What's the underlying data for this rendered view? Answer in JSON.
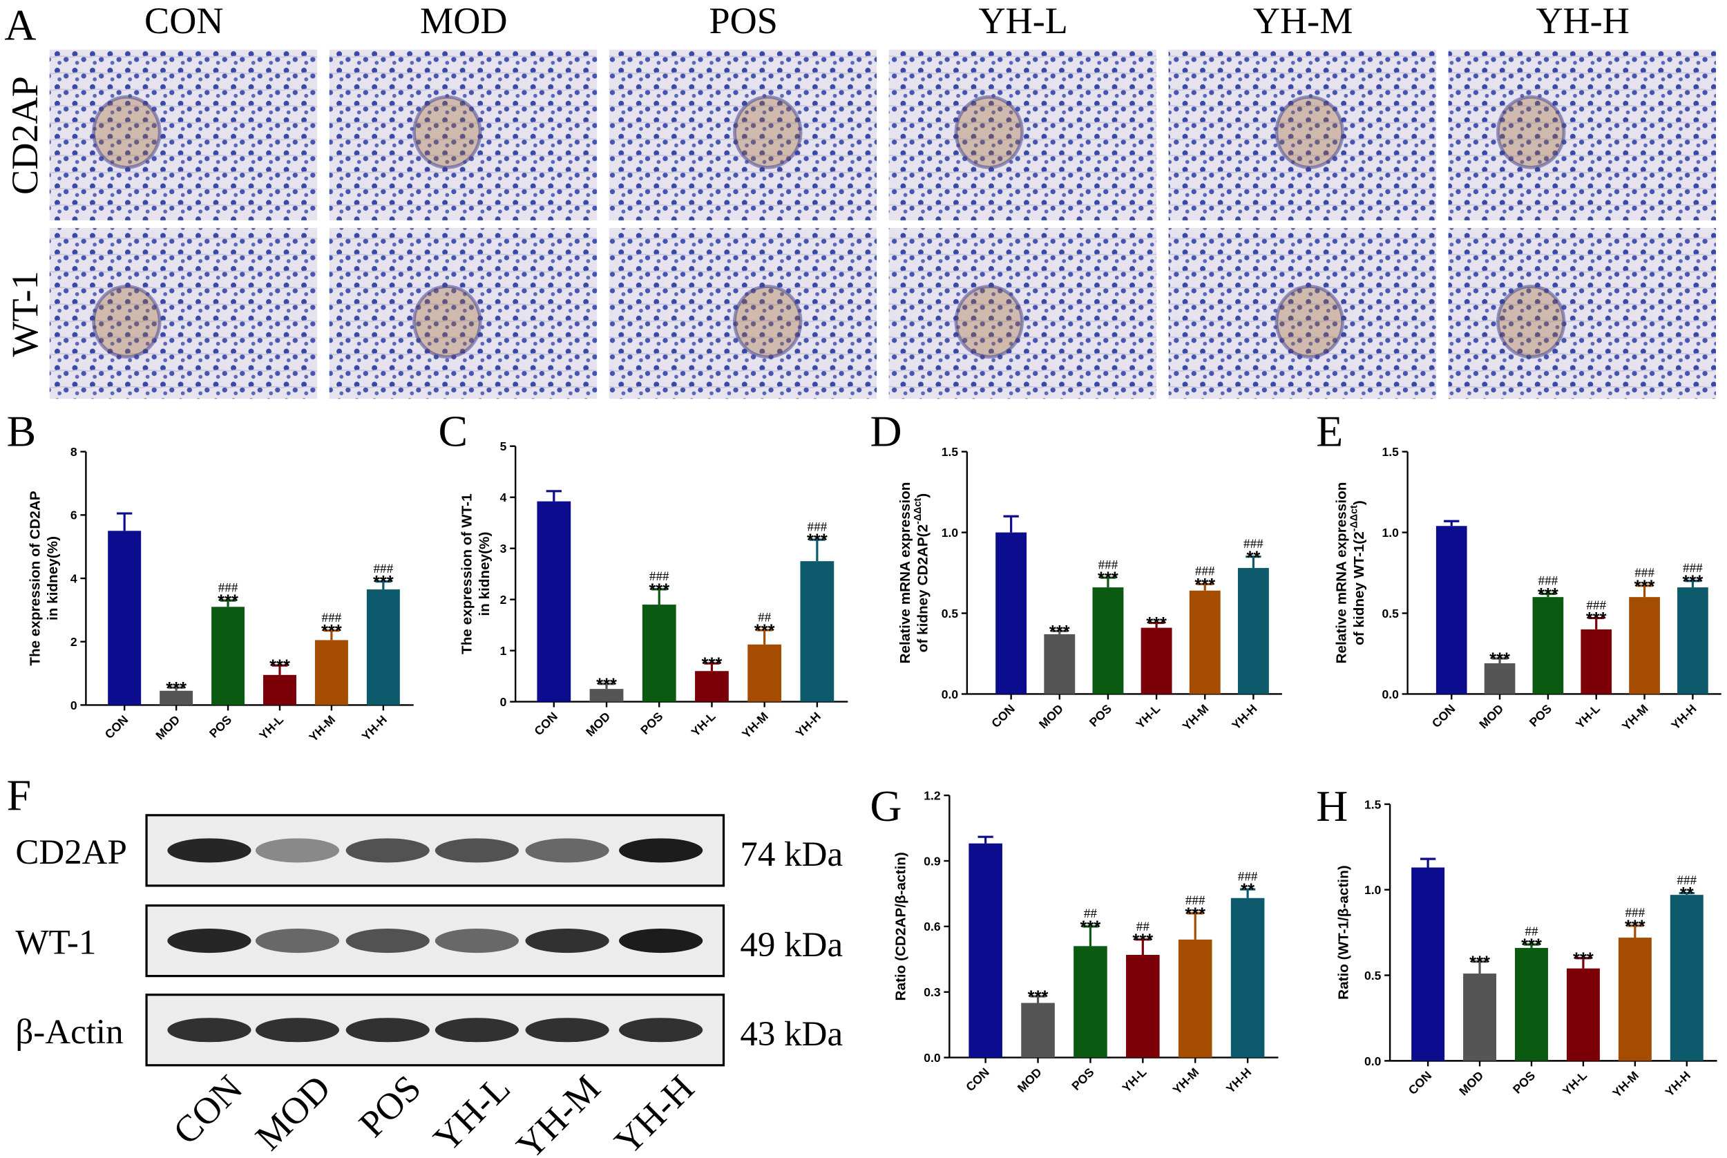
{
  "panel_a": {
    "letter": "A",
    "columns": [
      "CON",
      "MOD",
      "POS",
      "YH-L",
      "YH-M",
      "YH-H"
    ],
    "rows": [
      "CD2AP",
      "WT-1"
    ]
  },
  "panel_f": {
    "letter": "F",
    "rows": [
      "CD2AP",
      "WT-1",
      "β-Actin"
    ],
    "sizes": [
      "74 kDa",
      "49 kDa",
      "43 kDa"
    ],
    "lanes": [
      "CON",
      "MOD",
      "POS",
      "YH-L",
      "YH-M",
      "YH-H"
    ]
  },
  "chart_data": [
    {
      "type": "bar",
      "label": "B",
      "ylabel": [
        "The expression of CD2AP",
        "in kidney(%)"
      ],
      "categories": [
        "CON",
        "MOD",
        "POS",
        "YH-L",
        "YH-M",
        "YH-H"
      ],
      "colors": [
        "#0c0c8e",
        "#555555",
        "#0b5a12",
        "#7c0008",
        "#a44c00",
        "#0d5a6c"
      ],
      "values": [
        5.5,
        0.45,
        3.1,
        0.95,
        2.05,
        3.65
      ],
      "errors": [
        0.55,
        0.1,
        0.2,
        0.3,
        0.3,
        0.25
      ],
      "stars": [
        null,
        "***",
        "***",
        "***",
        "***",
        "***"
      ],
      "hashes": [
        null,
        null,
        "###",
        null,
        "###",
        "###"
      ],
      "ylim": [
        0,
        8
      ],
      "yticks": [
        0,
        2,
        4,
        6,
        8
      ]
    },
    {
      "type": "bar",
      "label": "C",
      "ylabel": [
        "The expression of WT-1",
        "in kidney(%)"
      ],
      "categories": [
        "CON",
        "MOD",
        "POS",
        "YH-L",
        "YH-M",
        "YH-H"
      ],
      "colors": [
        "#0c0c8e",
        "#555555",
        "#0b5a12",
        "#7c0008",
        "#a44c00",
        "#0d5a6c"
      ],
      "values": [
        3.92,
        0.25,
        1.9,
        0.6,
        1.12,
        2.75
      ],
      "errors": [
        0.2,
        0.1,
        0.3,
        0.15,
        0.28,
        0.42
      ],
      "stars": [
        null,
        "***",
        "***",
        "***",
        "***",
        "***"
      ],
      "hashes": [
        null,
        null,
        "###",
        null,
        "##",
        "###"
      ],
      "ylim": [
        0,
        5
      ],
      "yticks": [
        0,
        1,
        2,
        3,
        4,
        5
      ]
    },
    {
      "type": "bar",
      "label": "D",
      "ylabel": [
        "Relative mRNA expression",
        "of kidney CD2AP(2"
      ],
      "ylabel_sup": "-ΔΔct",
      "ylabel_end": ")",
      "categories": [
        "CON",
        "MOD",
        "POS",
        "YH-L",
        "YH-M",
        "YH-H"
      ],
      "colors": [
        "#0c0c8e",
        "#555555",
        "#0b5a12",
        "#7c0008",
        "#a44c00",
        "#0d5a6c"
      ],
      "values": [
        1.0,
        0.37,
        0.66,
        0.41,
        0.64,
        0.78
      ],
      "errors": [
        0.1,
        0.02,
        0.06,
        0.03,
        0.04,
        0.07
      ],
      "stars": [
        null,
        "***",
        "***",
        "***",
        "***",
        "**"
      ],
      "hashes": [
        null,
        null,
        "###",
        null,
        "###",
        "###"
      ],
      "ylim": [
        0,
        1.5
      ],
      "yticks": [
        {
          "value": 0,
          "label": "0.0"
        },
        0.5,
        {
          "value": 1,
          "label": "1.0"
        },
        1.5
      ]
    },
    {
      "type": "bar",
      "label": "E",
      "ylabel": [
        "Relative mRNA expression",
        "of kidney WT-1(2"
      ],
      "ylabel_sup": "-ΔΔct",
      "ylabel_end": ")",
      "categories": [
        "CON",
        "MOD",
        "POS",
        "YH-L",
        "YH-M",
        "YH-H"
      ],
      "colors": [
        "#0c0c8e",
        "#555555",
        "#0b5a12",
        "#7c0008",
        "#a44c00",
        "#0d5a6c"
      ],
      "values": [
        1.04,
        0.19,
        0.6,
        0.4,
        0.6,
        0.66
      ],
      "errors": [
        0.03,
        0.03,
        0.02,
        0.07,
        0.07,
        0.04
      ],
      "stars": [
        null,
        "***",
        "***",
        "***",
        "***",
        "***"
      ],
      "hashes": [
        null,
        null,
        "###",
        "###",
        "###",
        "###"
      ],
      "ylim": [
        0,
        1.5
      ],
      "yticks": [
        {
          "value": 0,
          "label": "0.0"
        },
        0.5,
        {
          "value": 1,
          "label": "1.0"
        },
        1.5
      ]
    },
    {
      "type": "bar",
      "label": "G",
      "ylabel": [
        "Ratio (CD2AP/β-actin)"
      ],
      "categories": [
        "CON",
        "MOD",
        "POS",
        "YH-L",
        "YH-M",
        "YH-H"
      ],
      "colors": [
        "#0c0c8e",
        "#555555",
        "#0b5a12",
        "#7c0008",
        "#a44c00",
        "#0d5a6c"
      ],
      "values": [
        0.98,
        0.25,
        0.51,
        0.47,
        0.54,
        0.73
      ],
      "errors": [
        0.03,
        0.03,
        0.09,
        0.07,
        0.12,
        0.04
      ],
      "stars": [
        null,
        "***",
        "***",
        "***",
        "***",
        "**"
      ],
      "hashes": [
        null,
        null,
        "##",
        "##",
        "###",
        "###"
      ],
      "ylim": [
        0,
        1.2
      ],
      "yticks": [
        {
          "value": 0,
          "label": "0.0"
        },
        0.3,
        0.6,
        0.9,
        1.2
      ]
    },
    {
      "type": "bar",
      "label": "H",
      "ylabel": [
        "Ratio (WT-1/β-actin)"
      ],
      "categories": [
        "CON",
        "MOD",
        "POS",
        "YH-L",
        "YH-M",
        "YH-H"
      ],
      "colors": [
        "#0c0c8e",
        "#555555",
        "#0b5a12",
        "#7c0008",
        "#a44c00",
        "#0d5a6c"
      ],
      "values": [
        1.13,
        0.51,
        0.66,
        0.54,
        0.72,
        0.97
      ],
      "errors": [
        0.05,
        0.07,
        0.02,
        0.06,
        0.07,
        0.01
      ],
      "stars": [
        null,
        "***",
        "***",
        "***",
        "***",
        "**"
      ],
      "hashes": [
        null,
        null,
        "##",
        null,
        "###",
        "###"
      ],
      "ylim": [
        0,
        1.5
      ],
      "yticks": [
        {
          "value": 0,
          "label": "0.0"
        },
        0.5,
        {
          "value": 1,
          "label": "1.0"
        },
        1.5
      ]
    }
  ]
}
